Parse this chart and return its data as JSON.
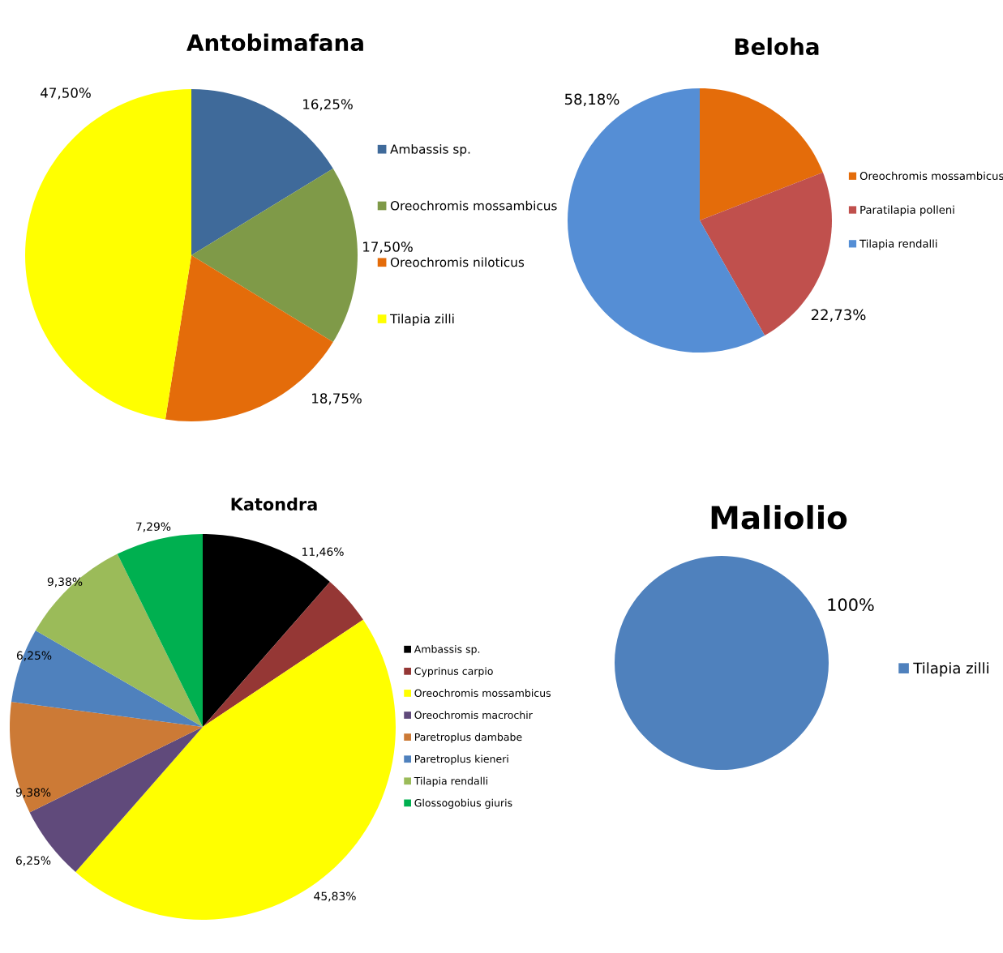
{
  "chart_data": [
    {
      "type": "pie",
      "title": "Antobimafana",
      "legend": "right",
      "categories": [
        "Ambassis sp.",
        "Oreochromis mossambicus",
        "Oreochromis niloticus",
        "Tilapia zilli"
      ],
      "values": [
        16.25,
        17.5,
        18.75,
        47.5
      ],
      "colors": [
        "#3f6a9a",
        "#7f9a48",
        "#e46c0a",
        "#ffff00"
      ],
      "value_labels": [
        "16,25%",
        "17,50%",
        "18,75%",
        "47,50%"
      ]
    },
    {
      "type": "pie",
      "title": "Beloha",
      "legend": "right",
      "categories": [
        "Oreochromis mossambicus",
        "Paratilapia polleni",
        "Tilapia rendalli"
      ],
      "values": [
        19.09,
        22.73,
        58.18
      ],
      "colors": [
        "#e46c0a",
        "#c0504d",
        "#558ed5"
      ],
      "value_labels": [
        null,
        "22,73%",
        "58,18%"
      ]
    },
    {
      "type": "pie",
      "title": "Katondra",
      "legend": "right",
      "categories": [
        "Ambassis sp.",
        "Cyprinus carpio",
        "Oreochromis mossambicus",
        "Oreochromis macrochir",
        "Paretroplus dambabe",
        "Paretroplus kieneri",
        "Tilapia rendalli",
        "Glossogobius giuris"
      ],
      "values": [
        11.46,
        4.16,
        45.83,
        6.25,
        9.38,
        6.25,
        9.38,
        7.29
      ],
      "colors": [
        "#000000",
        "#953735",
        "#ffff00",
        "#604a7b",
        "#cc7a36",
        "#4f81bd",
        "#9bbb59",
        "#00b050"
      ],
      "value_labels": [
        "11,46%",
        null,
        "45,83%",
        "6,25%",
        "9,38%",
        "6,25%",
        "9,38%",
        "7,29%"
      ]
    },
    {
      "type": "pie",
      "title": "Maliolio",
      "legend": "right",
      "categories": [
        "Tilapia zilli"
      ],
      "values": [
        100
      ],
      "colors": [
        "#4f81bd"
      ],
      "value_labels": [
        "100%"
      ]
    }
  ]
}
